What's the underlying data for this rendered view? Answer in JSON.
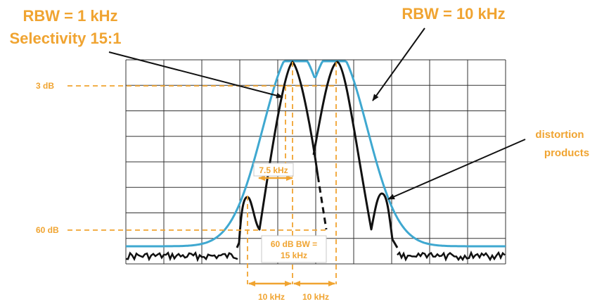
{
  "annotations": {
    "rbw_narrow_line1": "RBW = 1 kHz",
    "rbw_narrow_line2": "Selectivity 15:1",
    "rbw_wide": "RBW = 10 kHz",
    "distortion_line1": "distortion",
    "distortion_line2": "products",
    "level_3db": "3 dB",
    "level_60db": "60 dB",
    "bw_3db": "7.5 kHz",
    "bw_60db_line1": "60 dB BW =",
    "bw_60db_line2": "15 kHz",
    "spacing_left": "10 kHz",
    "spacing_right": "10 kHz"
  },
  "colors": {
    "accent_orange": "#f0a431",
    "wide_trace": "#3fa8d0",
    "narrow_trace": "#111111",
    "grid": "#333333"
  }
}
